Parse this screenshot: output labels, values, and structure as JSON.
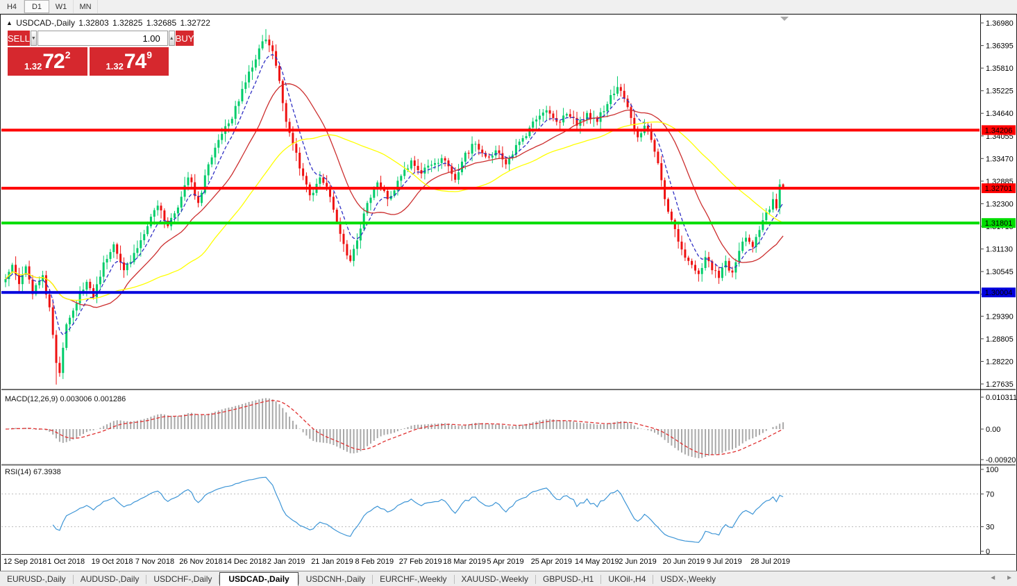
{
  "toolbar": {
    "timeframes": [
      {
        "label": "H4",
        "active": false
      },
      {
        "label": "D1",
        "active": true
      },
      {
        "label": "W1",
        "active": false
      },
      {
        "label": "MN",
        "active": false
      }
    ]
  },
  "chart": {
    "title_marker": "▲",
    "symbol_period": "USDCAD-,Daily",
    "ohlc": {
      "open": "1.32803",
      "high": "1.32825",
      "low": "1.32685",
      "close": "1.32722"
    },
    "trade_widget": {
      "sell_label": "SELL",
      "buy_label": "BUY",
      "volume": "1.00",
      "spin_down_glyph": "▼",
      "spin_up_glyph": "▲",
      "sell_price": {
        "prefix": "1.32",
        "big": "72",
        "sup": "2"
      },
      "buy_price": {
        "prefix": "1.32",
        "big": "74",
        "sup": "9"
      }
    },
    "levels": [
      {
        "price": 1.34206,
        "label": "1.34206",
        "color": "#ff0000"
      },
      {
        "price": 1.32701,
        "label": "1.32701",
        "color": "#ff0000"
      },
      {
        "price": 1.31801,
        "label": "1.31801",
        "color": "#00dd00"
      },
      {
        "price": 1.30004,
        "label": "1.30004",
        "color": "#0000dd"
      }
    ],
    "price_axis": {
      "ticks": [
        "1.36980",
        "1.36395",
        "1.35810",
        "1.35225",
        "1.34640",
        "1.34055",
        "1.33470",
        "1.32885",
        "1.32300",
        "1.31715",
        "1.31130",
        "1.30545",
        "1.29960",
        "1.29390",
        "1.28805",
        "1.28220",
        "1.27635"
      ]
    },
    "date_axis": {
      "labels": [
        "12 Sep 2018",
        "1 Oct 2018",
        "19 Oct 2018",
        "7 Nov 2018",
        "26 Nov 2018",
        "14 Dec 2018",
        "2 Jan 2019",
        "21 Jan 2019",
        "8 Feb 2019",
        "27 Feb 2019",
        "18 Mar 2019",
        "5 Apr 2019",
        "25 Apr 2019",
        "14 May 2019",
        "2 Jun 2019",
        "20 Jun 2019",
        "9 Jul 2019",
        "28 Jul 2019"
      ]
    }
  },
  "indicators": {
    "macd": {
      "label": "MACD(12,26,9) 0.003006 0.001286",
      "axis": [
        "0.010311",
        "0.00",
        "-0.009203"
      ]
    },
    "rsi": {
      "label": "RSI(14) 67.3938",
      "axis": [
        "100",
        "70",
        "30",
        "0"
      ],
      "levels": [
        70,
        30
      ]
    }
  },
  "tabs": {
    "items": [
      {
        "label": "EURUSD-,Daily",
        "active": false
      },
      {
        "label": "AUDUSD-,Daily",
        "active": false
      },
      {
        "label": "USDCHF-,Daily",
        "active": false
      },
      {
        "label": "USDCAD-,Daily",
        "active": true
      },
      {
        "label": "USDCNH-,Daily",
        "active": false
      },
      {
        "label": "EURCHF-,Weekly",
        "active": false
      },
      {
        "label": "XAUUSD-,Weekly",
        "active": false
      },
      {
        "label": "GBPUSD-,H1",
        "active": false
      },
      {
        "label": "UKOil-,H4",
        "active": false
      },
      {
        "label": "USDX-,Weekly",
        "active": false
      }
    ],
    "scroll_left_glyph": "◄",
    "scroll_right_glyph": "►"
  },
  "colors": {
    "bull": "#00cc6a",
    "bear": "#ee1111",
    "ma_fast": "#2f2fc4",
    "ma_mid": "#cc2e2e",
    "ma_slow": "#ffff00",
    "macd_hist": "#a8a8a8",
    "macd_signal": "#e03030",
    "rsi_line": "#3d95d6",
    "rsi_level": "#bbbbbb",
    "trade_red": "#d6282e",
    "axis_text": "#000000"
  },
  "chart_data": {
    "type": "candlestick",
    "symbol": "USDCAD",
    "period": "Daily",
    "bars": 231,
    "y_axis_range": [
      1.27635,
      1.3698
    ],
    "macd_axis_range": [
      -0.009203,
      0.010311
    ],
    "rsi_last": 67.3938,
    "macd_last": 0.003006,
    "macd_signal_last": 0.001286,
    "last_candle": {
      "open": 1.32803,
      "high": 1.32825,
      "low": 1.32685,
      "close": 1.32722
    },
    "close_anchors": [
      [
        0,
        1.3035
      ],
      [
        2,
        1.3072
      ],
      [
        4,
        1.3022
      ],
      [
        6,
        1.3068
      ],
      [
        8,
        1.2996
      ],
      [
        11,
        1.3045
      ],
      [
        13,
        1.2962
      ],
      [
        15,
        1.2818
      ],
      [
        16,
        1.2792
      ],
      [
        18,
        1.2918
      ],
      [
        21,
        1.2972
      ],
      [
        24,
        1.3028
      ],
      [
        26,
        1.2988
      ],
      [
        29,
        1.3078
      ],
      [
        32,
        1.3125
      ],
      [
        35,
        1.3058
      ],
      [
        39,
        1.3115
      ],
      [
        42,
        1.3172
      ],
      [
        45,
        1.3225
      ],
      [
        48,
        1.3172
      ],
      [
        52,
        1.3248
      ],
      [
        54,
        1.3298
      ],
      [
        57,
        1.3232
      ],
      [
        60,
        1.3332
      ],
      [
        63,
        1.3395
      ],
      [
        66,
        1.3438
      ],
      [
        69,
        1.3495
      ],
      [
        72,
        1.3572
      ],
      [
        75,
        1.3632
      ],
      [
        77,
        1.3655
      ],
      [
        79,
        1.3625
      ],
      [
        81,
        1.3548
      ],
      [
        83,
        1.3442
      ],
      [
        85,
        1.3385
      ],
      [
        88,
        1.3302
      ],
      [
        90,
        1.3252
      ],
      [
        93,
        1.3298
      ],
      [
        96,
        1.3248
      ],
      [
        99,
        1.3152
      ],
      [
        102,
        1.3082
      ],
      [
        104,
        1.3135
      ],
      [
        107,
        1.3232
      ],
      [
        110,
        1.3285
      ],
      [
        113,
        1.3242
      ],
      [
        117,
        1.3302
      ],
      [
        120,
        1.3342
      ],
      [
        123,
        1.3308
      ],
      [
        127,
        1.3335
      ],
      [
        130,
        1.3342
      ],
      [
        133,
        1.3292
      ],
      [
        136,
        1.3362
      ],
      [
        139,
        1.3385
      ],
      [
        142,
        1.3352
      ],
      [
        145,
        1.3368
      ],
      [
        148,
        1.3332
      ],
      [
        151,
        1.3382
      ],
      [
        154,
        1.3405
      ],
      [
        157,
        1.3448
      ],
      [
        160,
        1.3472
      ],
      [
        163,
        1.3442
      ],
      [
        166,
        1.3462
      ],
      [
        169,
        1.3432
      ],
      [
        172,
        1.3465
      ],
      [
        175,
        1.3442
      ],
      [
        178,
        1.3488
      ],
      [
        181,
        1.3532
      ],
      [
        183,
        1.3502
      ],
      [
        185,
        1.3452
      ],
      [
        187,
        1.3402
      ],
      [
        189,
        1.3432
      ],
      [
        191,
        1.3395
      ],
      [
        193,
        1.3335
      ],
      [
        195,
        1.3242
      ],
      [
        197,
        1.3188
      ],
      [
        199,
        1.3132
      ],
      [
        202,
        1.3082
      ],
      [
        205,
        1.3048
      ],
      [
        207,
        1.3092
      ],
      [
        209,
        1.3058
      ],
      [
        211,
        1.3038
      ],
      [
        213,
        1.3082
      ],
      [
        215,
        1.3052
      ],
      [
        217,
        1.3108
      ],
      [
        219,
        1.3142
      ],
      [
        221,
        1.3118
      ],
      [
        223,
        1.3162
      ],
      [
        225,
        1.3208
      ],
      [
        227,
        1.3242
      ],
      [
        228,
        1.3218
      ],
      [
        229,
        1.328
      ],
      [
        230,
        1.32722
      ]
    ],
    "wick_extremes": [
      {
        "bar": 15,
        "type": "low",
        "price": 1.2762
      },
      {
        "bar": 77,
        "type": "high",
        "price": 1.3682
      },
      {
        "bar": 181,
        "type": "high",
        "price": 1.356
      }
    ],
    "levels": {
      "resistance_upper": 1.34206,
      "resistance_lower": 1.32701,
      "support_green": 1.31801,
      "round_blue": 1.30004
    },
    "moving_averages": [
      {
        "type": "ema",
        "period": 7,
        "color": "#2f2fc4",
        "dash": "5 3"
      },
      {
        "type": "sma",
        "period": 20,
        "color": "#cc2e2e",
        "dash": ""
      },
      {
        "type": "sma",
        "period": 45,
        "color": "#ffff00",
        "dash": ""
      }
    ],
    "indicators": [
      {
        "name": "MACD",
        "params": [
          12,
          26,
          9
        ]
      },
      {
        "name": "RSI",
        "params": [
          14
        ],
        "levels": [
          70,
          30
        ]
      }
    ]
  }
}
